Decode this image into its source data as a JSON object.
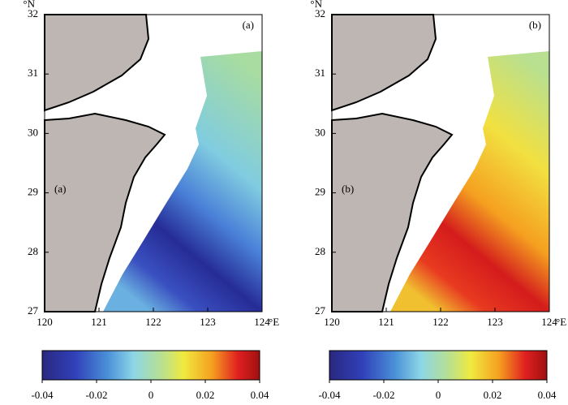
{
  "panels": [
    {
      "label": "(a)",
      "inner_label": "(a)"
    },
    {
      "label": "(b)",
      "inner_label": "(b)"
    }
  ],
  "xlim": [
    120,
    124
  ],
  "ylim": [
    27,
    32
  ],
  "xticks": [
    120,
    121,
    122,
    123,
    124
  ],
  "yticks": [
    27,
    28,
    29,
    30,
    31,
    32
  ],
  "x_unit": "°E",
  "y_unit": "°N",
  "colorbar": {
    "lim": [
      -0.04,
      0.04
    ],
    "ticks": [
      -0.04,
      -0.02,
      0,
      0.02,
      0.04
    ]
  }
}
